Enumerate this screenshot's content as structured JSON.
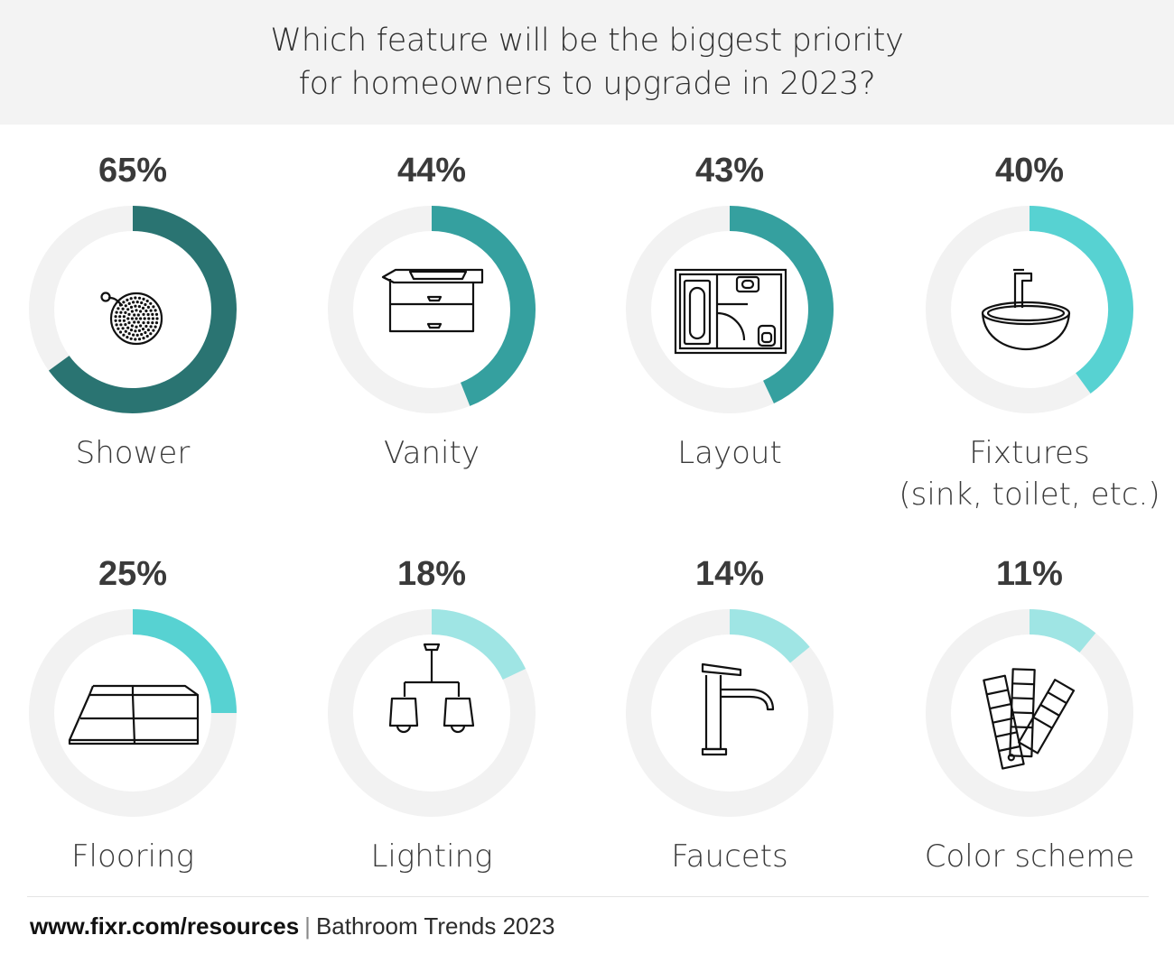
{
  "header": {
    "title_line1": "Which feature will be the biggest priority",
    "title_line2": "for homeowners to upgrade in 2023?"
  },
  "chart_data": {
    "type": "donut",
    "title": "Which feature will be the biggest priority for homeowners to upgrade in 2023?",
    "unit": "%",
    "categories": [
      "Shower",
      "Vanity",
      "Layout",
      "Fixtures (sink, toilet, etc.)",
      "Flooring",
      "Lighting",
      "Faucets",
      "Color scheme"
    ],
    "values": [
      65,
      44,
      43,
      40,
      25,
      18,
      14,
      11
    ],
    "items": [
      {
        "pct_text": "65%",
        "value": 65,
        "label_lines": [
          "Shower"
        ],
        "color": "#2a7472",
        "icon": "shower-head-icon"
      },
      {
        "pct_text": "44%",
        "value": 44,
        "label_lines": [
          "Vanity"
        ],
        "color": "#35a09f",
        "icon": "vanity-cabinet-icon"
      },
      {
        "pct_text": "43%",
        "value": 43,
        "label_lines": [
          "Layout"
        ],
        "color": "#35a09f",
        "icon": "floor-plan-icon"
      },
      {
        "pct_text": "40%",
        "value": 40,
        "label_lines": [
          "Fixtures",
          "(sink, toilet, etc.)"
        ],
        "color": "#57d2d2",
        "icon": "vessel-sink-icon"
      },
      {
        "pct_text": "25%",
        "value": 25,
        "label_lines": [
          "Flooring"
        ],
        "color": "#57d2d2",
        "icon": "floor-tiles-icon"
      },
      {
        "pct_text": "18%",
        "value": 18,
        "label_lines": [
          "Lighting"
        ],
        "color": "#9fe5e4",
        "icon": "chandelier-icon"
      },
      {
        "pct_text": "14%",
        "value": 14,
        "label_lines": [
          "Faucets"
        ],
        "color": "#9fe5e4",
        "icon": "faucet-icon"
      },
      {
        "pct_text": "11%",
        "value": 11,
        "label_lines": [
          "Color scheme"
        ],
        "color": "#9fe5e4",
        "icon": "color-swatches-icon"
      }
    ],
    "track_color": "#f2f2f2"
  },
  "footer": {
    "url": "www.fixr.com/resources",
    "separator": "|",
    "source": "Bathroom Trends 2023"
  }
}
